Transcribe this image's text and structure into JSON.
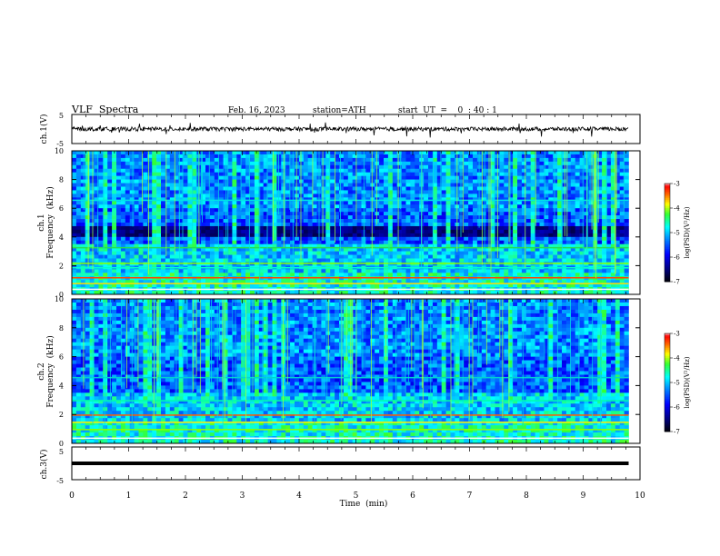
{
  "header": {
    "title": "VLF  Spectra",
    "date": "Feb. 16, 2023",
    "station": "station=ATH",
    "start": "start  UT  =    0  : 40 : 1"
  },
  "panels": {
    "ch1_label": "ch.1(V)",
    "ch1_spec_label": "ch.1",
    "ch2_spec_label": "ch.2",
    "ch3_label": "ch.3(V)",
    "freq_label": "Frequency  (kHz)",
    "cbar_label": "log(PSD)(V²/Hz)"
  },
  "chart_data": [
    {
      "type": "line",
      "title": "ch.1(V)",
      "ylabel": "ch.1(V)",
      "ylim": [
        -5,
        5
      ],
      "yticks": [
        "5",
        "-5"
      ],
      "xlim": [
        0,
        10
      ],
      "approx_level": 0,
      "color": "#000000"
    },
    {
      "type": "heatmap",
      "ylabel": "Frequency (kHz)",
      "channel": "ch.1",
      "ylim": [
        0,
        10
      ],
      "yticks": [
        0,
        2,
        4,
        6,
        8,
        10
      ],
      "xlim": [
        0,
        10
      ],
      "data_end_min": 9.8,
      "colorbar": {
        "label": "log(PSD)(V²/Hz)",
        "range": [
          -7,
          -3
        ],
        "ticks": [
          "-3",
          "-4",
          "-5",
          "-6",
          "-7"
        ]
      }
    },
    {
      "type": "heatmap",
      "ylabel": "Frequency (kHz)",
      "channel": "ch.2",
      "ylim": [
        0,
        10
      ],
      "yticks": [
        0,
        2,
        4,
        6,
        8,
        10
      ],
      "xlim": [
        0,
        10
      ],
      "data_end_min": 9.8,
      "colorbar": {
        "label": "log(PSD)(V²/Hz)",
        "range": [
          -7,
          -3
        ],
        "ticks": [
          "-3",
          "-4",
          "-5",
          "-6",
          "-7"
        ]
      }
    },
    {
      "type": "line",
      "ylabel": "ch.3(V)",
      "ylim": [
        -5,
        5
      ],
      "yticks": [
        "5",
        "-5"
      ],
      "xlim": [
        0,
        10
      ],
      "approx_level": 0,
      "color": "#000000"
    }
  ],
  "xaxis": {
    "label": "Time  (min)",
    "ticks": [
      "0",
      "1",
      "2",
      "3",
      "4",
      "5",
      "6",
      "7",
      "8",
      "9",
      "10"
    ]
  }
}
